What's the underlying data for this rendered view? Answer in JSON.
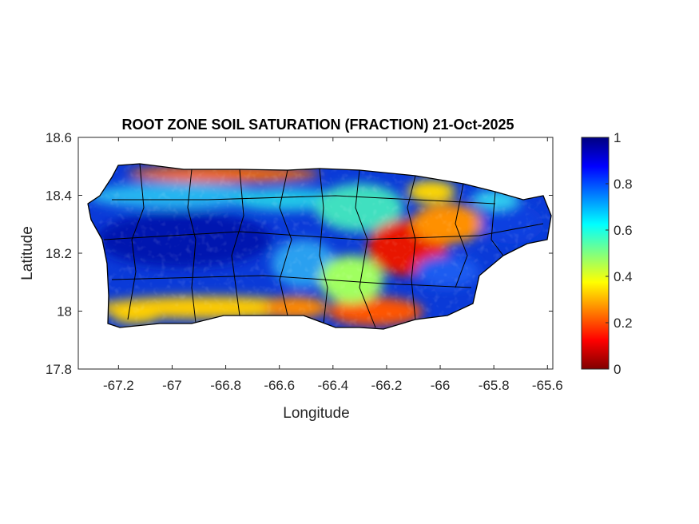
{
  "chart_data": {
    "type": "heatmap",
    "title": "ROOT ZONE SOIL SATURATION (FRACTION) 21-Oct-2025",
    "xlabel": "Longitude",
    "ylabel": "Latitude",
    "xlim": [
      -67.35,
      -65.58
    ],
    "ylim": [
      17.8,
      18.6
    ],
    "xticks": [
      -67.2,
      -67,
      -66.8,
      -66.6,
      -66.4,
      -66.2,
      -66,
      -65.8,
      -65.6
    ],
    "xtick_labels": [
      "-67.2",
      "-67",
      "-66.8",
      "-66.6",
      "-66.4",
      "-66.2",
      "-66",
      "-65.8",
      "-65.6"
    ],
    "yticks": [
      17.8,
      18,
      18.2,
      18.4,
      18.6
    ],
    "ytick_labels": [
      "17.8",
      "18",
      "18.2",
      "18.4",
      "18.6"
    ],
    "colorbar": {
      "colormap": "jet",
      "clim": [
        0,
        1
      ],
      "ticks": [
        0,
        0.2,
        0.4,
        0.6,
        0.8,
        1
      ],
      "tick_labels": [
        "0",
        "0.2",
        "0.4",
        "0.6",
        "0.8",
        "1"
      ]
    },
    "grid": false
  }
}
